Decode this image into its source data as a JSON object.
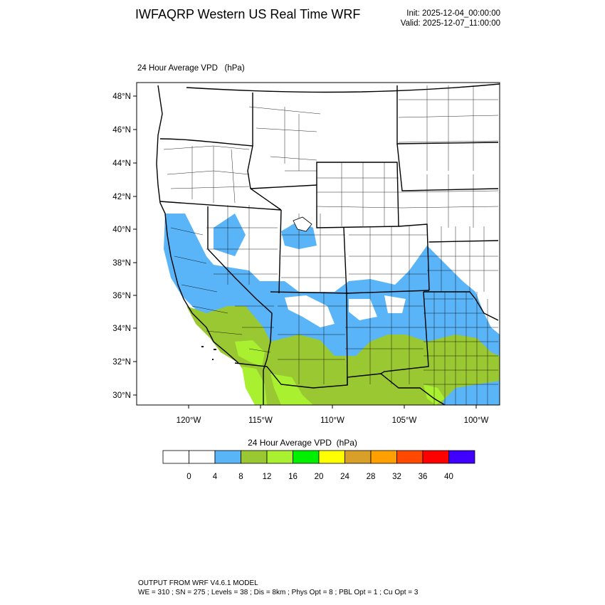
{
  "header": {
    "title": "IWFAQRP Western US Real Time WRF",
    "init": "Init: 2025-12-04_00:00:00",
    "valid": "Valid: 2025-12-07_11:00:00"
  },
  "field_label": "24 Hour Average VPD   (hPa)",
  "axes": {
    "lat_labels": [
      "48°N",
      "46°N",
      "44°N",
      "42°N",
      "40°N",
      "38°N",
      "36°N",
      "34°N",
      "32°N",
      "30°N"
    ],
    "lon_labels": [
      "120°W",
      "115°W",
      "110°W",
      "105°W",
      "100°W"
    ]
  },
  "colorbar": {
    "title": "24 Hour Average VPD  (hPa)",
    "colors": [
      "#ffffff",
      "#ffffff",
      "#5ab4f8",
      "#9ac832",
      "#a8f030",
      "#00f000",
      "#ffff00",
      "#d8a028",
      "#ffa000",
      "#ff4800",
      "#ff0000",
      "#4000ff"
    ],
    "tick_labels": [
      "0",
      "4",
      "8",
      "12",
      "16",
      "20",
      "24",
      "28",
      "32",
      "36",
      "40"
    ]
  },
  "legend_colors": {
    "low": "#5ab4f8",
    "mid": "#9ac832",
    "high": "#a8f030"
  },
  "footer": {
    "line1": "OUTPUT FROM WRF V4.6.1 MODEL",
    "line2": "WE = 310 ; SN = 275 ; Levels = 38 ; Dis = 8km ; Phys Opt = 8 ; PBL Opt = 1 ; Cu Opt = 3"
  }
}
